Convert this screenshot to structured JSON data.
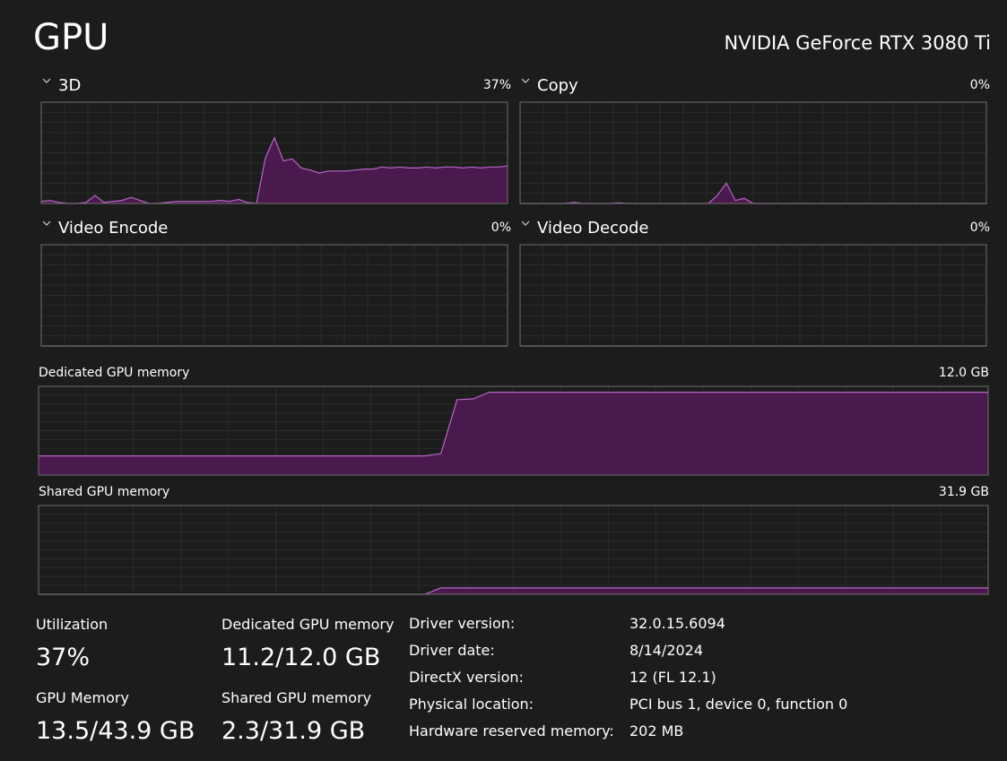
{
  "header": {
    "title": "GPU",
    "device": "NVIDIA GeForce RTX 3080 Ti"
  },
  "engines": [
    {
      "label": "3D",
      "current": "37%",
      "ylim": [
        0,
        100
      ],
      "values": [
        2,
        3,
        1,
        0,
        0,
        1,
        8,
        1,
        2,
        3,
        6,
        3,
        0,
        0,
        1,
        2,
        2,
        2,
        2,
        2,
        3,
        2,
        4,
        1,
        0,
        45,
        65,
        42,
        44,
        35,
        33,
        30,
        32,
        32,
        32,
        33,
        34,
        34,
        36,
        35,
        36,
        35,
        35,
        36,
        35,
        36,
        36,
        35,
        36,
        35,
        36,
        36,
        37
      ]
    },
    {
      "label": "Copy",
      "current": "0%",
      "ylim": [
        0,
        100
      ],
      "values": [
        0,
        0,
        0,
        0,
        0,
        0,
        1,
        0,
        0,
        0,
        0,
        0.5,
        0,
        0,
        0,
        0,
        0,
        0,
        0,
        0,
        0,
        0,
        8,
        20,
        3,
        5,
        0,
        0,
        0,
        0,
        0,
        0,
        0,
        0,
        0,
        0,
        0,
        0,
        0,
        0,
        0,
        0,
        0,
        0,
        0,
        0,
        0,
        0,
        0,
        0,
        0,
        0,
        0
      ]
    },
    {
      "label": "Video Encode",
      "current": "0%",
      "ylim": [
        0,
        100
      ],
      "values": [
        0,
        0,
        0,
        0,
        0,
        0,
        0,
        0,
        0,
        0,
        0,
        0,
        0,
        0,
        0,
        0,
        0,
        0,
        0,
        0,
        0,
        0,
        0,
        0,
        0,
        0,
        0,
        0,
        0,
        0,
        0,
        0,
        0,
        0,
        0,
        0,
        0,
        0,
        0,
        0,
        0,
        0,
        0,
        0,
        0,
        0,
        0,
        0,
        0,
        0,
        0,
        0,
        0
      ]
    },
    {
      "label": "Video Decode",
      "current": "0%",
      "ylim": [
        0,
        100
      ],
      "values": [
        0,
        0,
        0,
        0,
        0,
        0,
        0,
        0,
        0,
        0,
        0,
        0,
        0,
        0,
        0,
        0,
        0,
        0,
        0,
        0,
        0,
        0,
        0,
        0,
        0,
        0,
        0,
        0,
        0,
        0,
        0,
        0,
        0,
        0,
        0,
        0,
        0,
        0,
        0,
        0,
        0,
        0,
        0,
        0,
        0,
        0,
        0,
        0,
        0,
        0,
        0,
        0,
        0
      ]
    }
  ],
  "memory_graphs": [
    {
      "label": "Dedicated GPU memory",
      "scale": {
        "value": 12.0,
        "label": "12.0 GB"
      },
      "values": [
        2.6,
        2.6,
        2.6,
        2.6,
        2.6,
        2.6,
        2.6,
        2.6,
        2.6,
        2.6,
        2.6,
        2.6,
        2.6,
        2.6,
        2.6,
        2.6,
        2.6,
        2.6,
        2.6,
        2.6,
        2.6,
        2.6,
        2.6,
        2.6,
        2.6,
        2.9,
        10.2,
        10.3,
        11.2,
        11.2,
        11.2,
        11.2,
        11.2,
        11.2,
        11.2,
        11.2,
        11.2,
        11.2,
        11.2,
        11.2,
        11.2,
        11.2,
        11.2,
        11.2,
        11.2,
        11.2,
        11.2,
        11.2,
        11.2,
        11.2,
        11.2,
        11.2,
        11.2,
        11.2,
        11.2,
        11.2,
        11.2,
        11.2,
        11.2,
        11.2
      ]
    },
    {
      "label": "Shared GPU memory",
      "scale": {
        "value": 31.9,
        "label": "31.9 GB"
      },
      "values": [
        0,
        0,
        0,
        0,
        0,
        0,
        0,
        0,
        0,
        0,
        0,
        0,
        0,
        0,
        0,
        0,
        0,
        0,
        0,
        0,
        0,
        0,
        0,
        0,
        0,
        2.3,
        2.3,
        2.3,
        2.3,
        2.3,
        2.3,
        2.3,
        2.3,
        2.3,
        2.3,
        2.3,
        2.3,
        2.3,
        2.3,
        2.3,
        2.3,
        2.3,
        2.3,
        2.3,
        2.3,
        2.3,
        2.3,
        2.3,
        2.3,
        2.3,
        2.3,
        2.3,
        2.3,
        2.3,
        2.3,
        2.3,
        2.3,
        2.3,
        2.3,
        2.3
      ]
    }
  ],
  "stats": [
    {
      "label": "Utilization",
      "value": "37%"
    },
    {
      "label": "Dedicated GPU memory",
      "value": "11.2/12.0 GB"
    },
    {
      "label": "GPU Memory",
      "value": "13.5/43.9 GB"
    },
    {
      "label": "Shared GPU memory",
      "value": "2.3/31.9 GB"
    }
  ],
  "details": [
    {
      "label": "Driver version:",
      "value": "32.0.15.6094"
    },
    {
      "label": "Driver date:",
      "value": "8/14/2024"
    },
    {
      "label": "DirectX version:",
      "value": "12 (FL 12.1)"
    },
    {
      "label": "Physical location:",
      "value": "PCI bus 1, device 0, function 0"
    },
    {
      "label": "Hardware reserved memory:",
      "value": "202 MB"
    }
  ]
}
